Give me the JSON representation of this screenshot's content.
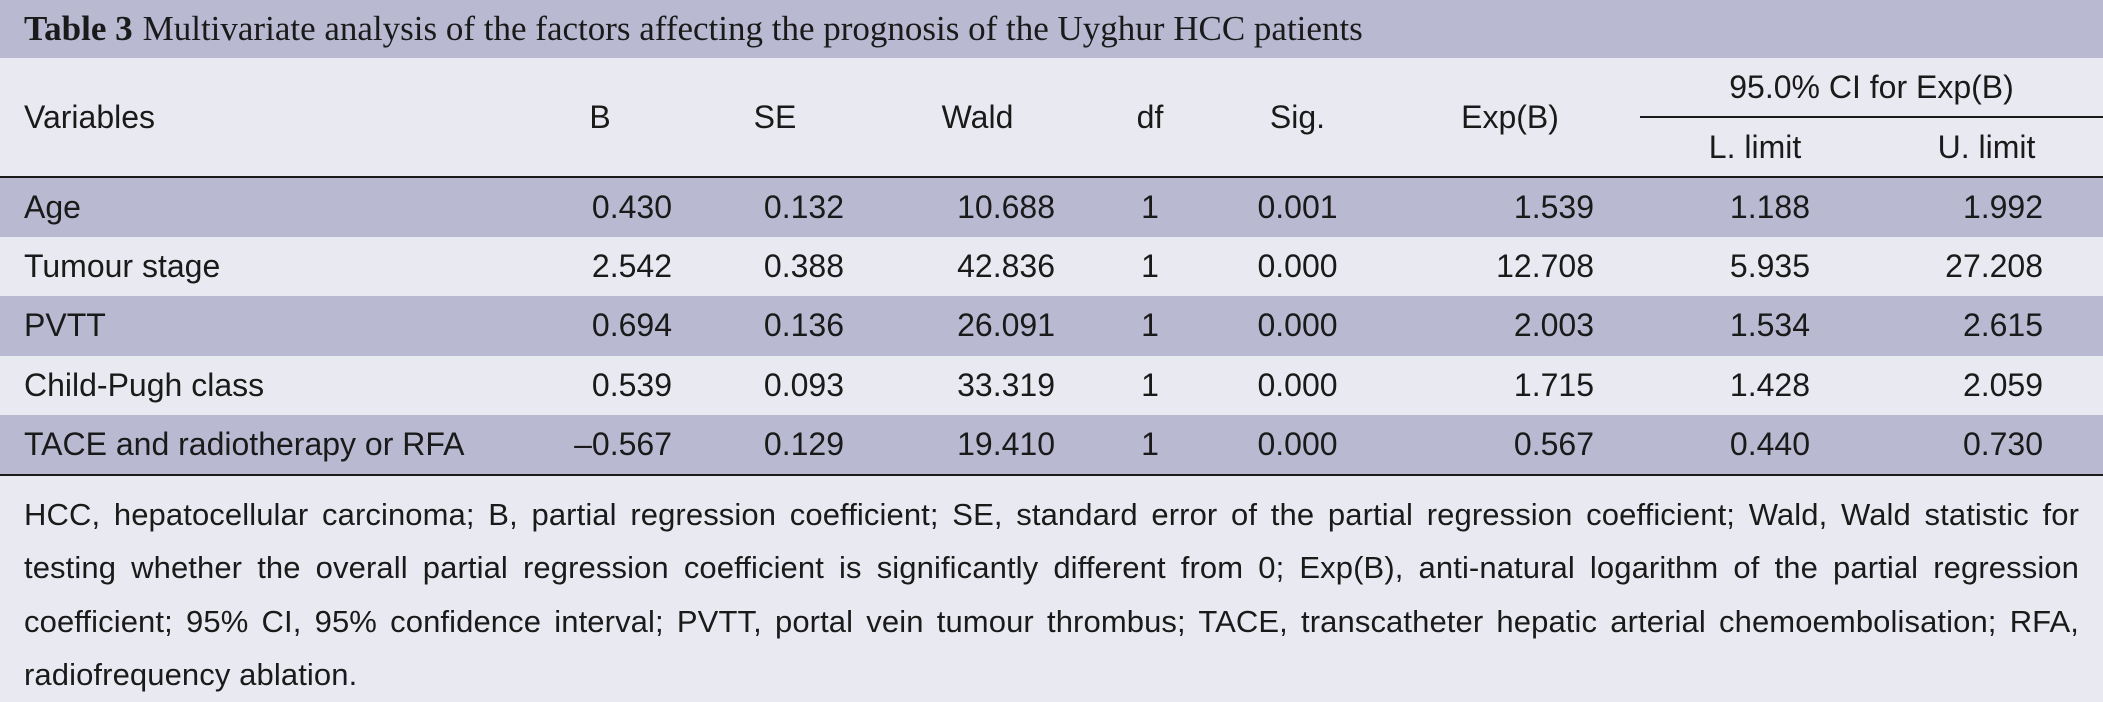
{
  "table": {
    "title_label": "Table 3",
    "title_text": "Multivariate analysis of the factors affecting the prognosis of the Uyghur HCC patients",
    "headers": {
      "variables": "Variables",
      "b": "B",
      "se": "SE",
      "wald": "Wald",
      "df": "df",
      "sig": "Sig.",
      "expb": "Exp(B)",
      "ci_group": "95.0% CI for Exp(B)",
      "lower": "L. limit",
      "upper": "U. limit"
    },
    "rows": [
      {
        "variable": "Age",
        "b": "0.430",
        "se": "0.132",
        "wald": "10.688",
        "df": "1",
        "sig": "0.001",
        "expb": "1.539",
        "lower": "1.188",
        "upper": "1.992"
      },
      {
        "variable": "Tumour stage",
        "b": "2.542",
        "se": "0.388",
        "wald": "42.836",
        "df": "1",
        "sig": "0.000",
        "expb": "12.708",
        "lower": "5.935",
        "upper": "27.208"
      },
      {
        "variable": "PVTT",
        "b": "0.694",
        "se": "0.136",
        "wald": "26.091",
        "df": "1",
        "sig": "0.000",
        "expb": "2.003",
        "lower": "1.534",
        "upper": "2.615"
      },
      {
        "variable": "Child-Pugh class",
        "b": "0.539",
        "se": "0.093",
        "wald": "33.319",
        "df": "1",
        "sig": "0.000",
        "expb": "1.715",
        "lower": "1.428",
        "upper": "2.059"
      },
      {
        "variable": "TACE and radiotherapy or RFA",
        "b": "–0.567",
        "se": "0.129",
        "wald": "19.410",
        "df": "1",
        "sig": "0.000",
        "expb": "0.567",
        "lower": "0.440",
        "upper": "0.730"
      }
    ],
    "footnote": "HCC, hepatocellular carcinoma; B, partial regression coefficient; SE, standard error of the partial regression coefficient; Wald, Wald statistic for testing whether the overall partial regression coefficient is significantly different from 0; Exp(B), anti-natural logarithm of the partial regression coefficient; 95% CI, 95% confidence interval; PVTT, portal vein tumour thrombus; TACE, transcatheter hepatic arterial chemoembolisation; RFA, radiofrequency ablation."
  },
  "colors": {
    "shade": "#b9b9d2",
    "background": "#e9e9f1",
    "text": "#1a1a1a"
  }
}
